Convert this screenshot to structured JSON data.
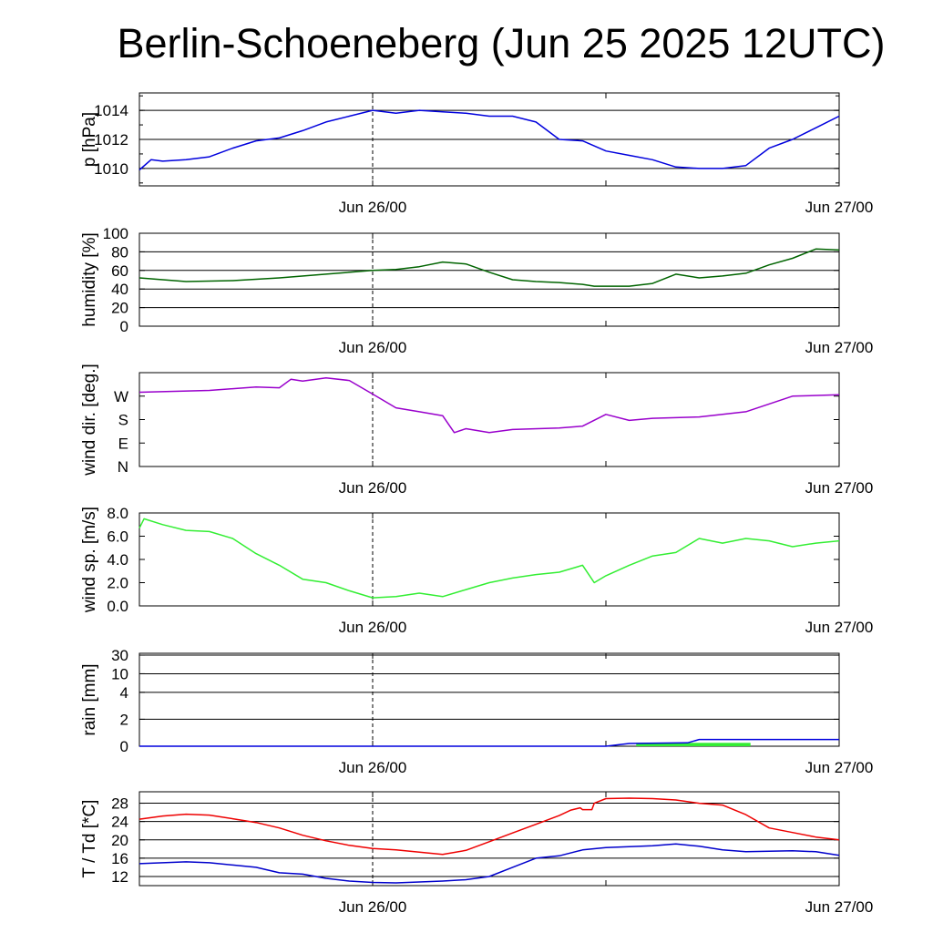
{
  "title": "Berlin-Schoeneberg (Jun 25 2025 12UTC)",
  "colors": {
    "pressure": "#0000dd",
    "humidity": "#006400",
    "wind_dir": "#9900cc",
    "wind_speed": "#33ee33",
    "rain_total": "#0000dd",
    "rain_bar": "#33ee33",
    "temperature": "#ee0000",
    "dewpoint": "#0000cc"
  },
  "chart_data": [
    {
      "type": "line",
      "id": "pressure",
      "ylabel": "p [hPa]",
      "ylim": [
        1008.8,
        1015.2
      ],
      "ticks": [
        {
          "v": 1010,
          "label": "1010"
        },
        {
          "v": 1012,
          "label": "1012"
        },
        {
          "v": 1014,
          "label": "1014"
        }
      ],
      "grid": true,
      "x_tick_labels": [
        "Jun 26/00",
        "Jun 27/00"
      ],
      "series": [
        {
          "color_key": "pressure",
          "points": [
            [
              0,
              1009.9
            ],
            [
              0.5,
              1010.6
            ],
            [
              1,
              1010.5
            ],
            [
              2,
              1010.6
            ],
            [
              3,
              1010.8
            ],
            [
              4,
              1011.4
            ],
            [
              5,
              1011.9
            ],
            [
              6,
              1012.1
            ],
            [
              7,
              1012.6
            ],
            [
              8,
              1013.2
            ],
            [
              9,
              1013.6
            ],
            [
              10,
              1014.0
            ],
            [
              11,
              1013.8
            ],
            [
              12,
              1014.0
            ],
            [
              13,
              1013.9
            ],
            [
              14,
              1013.8
            ],
            [
              15,
              1013.6
            ],
            [
              16,
              1013.6
            ],
            [
              17,
              1013.2
            ],
            [
              18,
              1012.0
            ],
            [
              19,
              1011.9
            ],
            [
              20,
              1011.2
            ],
            [
              21,
              1010.9
            ],
            [
              22,
              1010.6
            ],
            [
              23,
              1010.1
            ],
            [
              24,
              1010.0
            ],
            [
              25,
              1010.0
            ],
            [
              26,
              1010.2
            ],
            [
              27,
              1011.4
            ],
            [
              28,
              1012.0
            ],
            [
              29,
              1012.8
            ],
            [
              30,
              1013.6
            ]
          ]
        }
      ]
    },
    {
      "type": "line",
      "id": "humidity",
      "ylabel": "humidity [%]",
      "ylim": [
        0,
        100
      ],
      "ticks": [
        {
          "v": 0,
          "label": "0"
        },
        {
          "v": 20,
          "label": "20"
        },
        {
          "v": 40,
          "label": "40"
        },
        {
          "v": 60,
          "label": "60"
        },
        {
          "v": 80,
          "label": "80"
        },
        {
          "v": 100,
          "label": "100"
        }
      ],
      "grid": true,
      "x_tick_labels": [
        "Jun 26/00",
        "Jun 27/00"
      ],
      "series": [
        {
          "color_key": "humidity",
          "points": [
            [
              0,
              52
            ],
            [
              2,
              48
            ],
            [
              4,
              49
            ],
            [
              6,
              52
            ],
            [
              8,
              56
            ],
            [
              10,
              60
            ],
            [
              11,
              61
            ],
            [
              12,
              64
            ],
            [
              13,
              69
            ],
            [
              14,
              67
            ],
            [
              15,
              58
            ],
            [
              16,
              50
            ],
            [
              17,
              48
            ],
            [
              18,
              47
            ],
            [
              19,
              45
            ],
            [
              19.5,
              43
            ],
            [
              20,
              43
            ],
            [
              21,
              43
            ],
            [
              22,
              46
            ],
            [
              23,
              56
            ],
            [
              24,
              52
            ],
            [
              25,
              54
            ],
            [
              26,
              57
            ],
            [
              27,
              66
            ],
            [
              28,
              73
            ],
            [
              29,
              83
            ],
            [
              30,
              82
            ]
          ]
        }
      ]
    },
    {
      "type": "line",
      "id": "wind_dir",
      "ylabel": "wind dir. [deg.]",
      "ylim": [
        0,
        360
      ],
      "ticks": [
        {
          "v": 0,
          "label": "N"
        },
        {
          "v": 90,
          "label": "E"
        },
        {
          "v": 180,
          "label": "S"
        },
        {
          "v": 270,
          "label": "W"
        }
      ],
      "grid": false,
      "x_tick_labels": [
        "Jun 26/00",
        "Jun 27/00"
      ],
      "series": [
        {
          "color_key": "wind_dir",
          "points": [
            [
              0,
              285
            ],
            [
              3,
              292
            ],
            [
              5,
              305
            ],
            [
              6,
              302
            ],
            [
              6.5,
              335
            ],
            [
              7,
              328
            ],
            [
              8,
              340
            ],
            [
              9,
              330
            ],
            [
              10,
              278
            ],
            [
              11,
              225
            ],
            [
              12,
              210
            ],
            [
              13,
              195
            ],
            [
              13.5,
              130
            ],
            [
              14,
              145
            ],
            [
              15,
              130
            ],
            [
              16,
              142
            ],
            [
              18,
              148
            ],
            [
              19,
              155
            ],
            [
              20,
              200
            ],
            [
              21,
              177
            ],
            [
              22,
              185
            ],
            [
              24,
              190
            ],
            [
              26,
              210
            ],
            [
              28,
              270
            ],
            [
              30,
              275
            ]
          ]
        }
      ]
    },
    {
      "type": "line",
      "id": "wind_speed",
      "ylabel": "wind sp. [m/s]",
      "ylim": [
        0,
        8
      ],
      "ticks": [
        {
          "v": 0,
          "label": "0.0"
        },
        {
          "v": 2,
          "label": "2.0"
        },
        {
          "v": 4,
          "label": "4.0"
        },
        {
          "v": 6,
          "label": "6.0"
        },
        {
          "v": 8,
          "label": "8.0"
        }
      ],
      "grid": false,
      "x_tick_labels": [
        "Jun 26/00",
        "Jun 27/00"
      ],
      "series": [
        {
          "color_key": "wind_speed",
          "points": [
            [
              0,
              6.7
            ],
            [
              0.2,
              7.5
            ],
            [
              1,
              7.0
            ],
            [
              2,
              6.5
            ],
            [
              3,
              6.4
            ],
            [
              4,
              5.8
            ],
            [
              5,
              4.5
            ],
            [
              6,
              3.5
            ],
            [
              7,
              2.3
            ],
            [
              8,
              2.0
            ],
            [
              9,
              1.3
            ],
            [
              10,
              0.7
            ],
            [
              11,
              0.8
            ],
            [
              12,
              1.1
            ],
            [
              13,
              0.8
            ],
            [
              14,
              1.4
            ],
            [
              15,
              2.0
            ],
            [
              16,
              2.4
            ],
            [
              17,
              2.7
            ],
            [
              18,
              2.9
            ],
            [
              19,
              3.5
            ],
            [
              19.5,
              2.0
            ],
            [
              20,
              2.6
            ],
            [
              21,
              3.5
            ],
            [
              22,
              4.3
            ],
            [
              23,
              4.6
            ],
            [
              24,
              5.8
            ],
            [
              25,
              5.4
            ],
            [
              26,
              5.8
            ],
            [
              27,
              5.6
            ],
            [
              28,
              5.1
            ],
            [
              29,
              5.4
            ],
            [
              30,
              5.6
            ]
          ]
        }
      ]
    },
    {
      "type": "line",
      "id": "rain",
      "ylabel": "rain [mm]",
      "ylim": [
        0,
        30
      ],
      "ticks": [
        {
          "v": 0,
          "label": "0"
        },
        {
          "v": 2,
          "label": "2"
        },
        {
          "v": 4,
          "label": "4"
        },
        {
          "v": 10,
          "label": "10"
        },
        {
          "v": 30,
          "label": "30"
        }
      ],
      "scale": "piecewise",
      "grid": true,
      "x_tick_labels": [
        "Jun 26/00",
        "Jun 27/00"
      ],
      "series": [
        {
          "color_key": "rain_total",
          "points": [
            [
              0,
              0
            ],
            [
              20,
              0
            ],
            [
              21,
              0.2
            ],
            [
              23.5,
              0.25
            ],
            [
              24,
              0.5
            ],
            [
              30,
              0.5
            ]
          ]
        }
      ],
      "bars": {
        "color_key": "rain_bar",
        "x0": 21.3,
        "x1": 26.2,
        "value": 0.25
      }
    },
    {
      "type": "line",
      "id": "temp",
      "ylabel": "T / Td [*C]",
      "ylim": [
        10,
        30.5
      ],
      "ticks": [
        {
          "v": 12,
          "label": "12"
        },
        {
          "v": 16,
          "label": "16"
        },
        {
          "v": 20,
          "label": "20"
        },
        {
          "v": 24,
          "label": "24"
        },
        {
          "v": 28,
          "label": "28"
        }
      ],
      "grid": true,
      "x_tick_labels": [
        "Jun 26/00",
        "Jun 27/00"
      ],
      "series": [
        {
          "color_key": "temperature",
          "points": [
            [
              0,
              24.5
            ],
            [
              1,
              25.2
            ],
            [
              2,
              25.6
            ],
            [
              3,
              25.4
            ],
            [
              4,
              24.6
            ],
            [
              5,
              23.8
            ],
            [
              6,
              22.6
            ],
            [
              7,
              21.0
            ],
            [
              8,
              19.8
            ],
            [
              9,
              18.8
            ],
            [
              10,
              18.1
            ],
            [
              11,
              17.8
            ],
            [
              12,
              17.3
            ],
            [
              13,
              16.8
            ],
            [
              14,
              17.7
            ],
            [
              15,
              19.6
            ],
            [
              16,
              21.5
            ],
            [
              17,
              23.4
            ],
            [
              18,
              25.3
            ],
            [
              18.5,
              26.5
            ],
            [
              18.9,
              27.0
            ],
            [
              19,
              26.6
            ],
            [
              19.4,
              26.6
            ],
            [
              19.5,
              28.0
            ],
            [
              20,
              29.0
            ],
            [
              21,
              29.1
            ],
            [
              22,
              29.0
            ],
            [
              23,
              28.7
            ],
            [
              24,
              28.0
            ],
            [
              25,
              27.6
            ],
            [
              26,
              25.5
            ],
            [
              27,
              22.6
            ],
            [
              28,
              21.6
            ],
            [
              29,
              20.6
            ],
            [
              30,
              20.0
            ]
          ]
        },
        {
          "color_key": "dewpoint",
          "points": [
            [
              0,
              14.8
            ],
            [
              1,
              15.0
            ],
            [
              2,
              15.2
            ],
            [
              3,
              15.0
            ],
            [
              4,
              14.5
            ],
            [
              5,
              14.0
            ],
            [
              6,
              12.8
            ],
            [
              7,
              12.5
            ],
            [
              8,
              11.6
            ],
            [
              9,
              11.0
            ],
            [
              10,
              10.7
            ],
            [
              11,
              10.6
            ],
            [
              12,
              10.8
            ],
            [
              13,
              11.0
            ],
            [
              14,
              11.3
            ],
            [
              15,
              12.0
            ],
            [
              16,
              14.0
            ],
            [
              17,
              16.0
            ],
            [
              18,
              16.5
            ],
            [
              19,
              17.8
            ],
            [
              20,
              18.3
            ],
            [
              21,
              18.5
            ],
            [
              22,
              18.7
            ],
            [
              23,
              19.1
            ],
            [
              24,
              18.6
            ],
            [
              25,
              17.8
            ],
            [
              26,
              17.4
            ],
            [
              27,
              17.5
            ],
            [
              28,
              17.6
            ],
            [
              29,
              17.4
            ],
            [
              30,
              16.6
            ]
          ]
        }
      ]
    }
  ]
}
